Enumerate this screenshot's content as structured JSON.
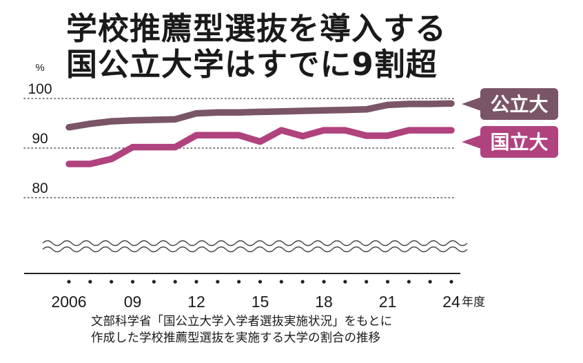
{
  "title_lines": [
    "学校推薦型選抜を導入する",
    "国公立大学はすでに9割超"
  ],
  "source_lines": [
    "文部科学省「国公立大学入学者選抜実施状況」をもとに",
    "作成した学校推薦型選抜を実施する大学の割合の推移"
  ],
  "colors": {
    "public": "#7a5467",
    "national": "#b0427e",
    "axis": "#222222",
    "grid": "#555555"
  },
  "chart_data": {
    "type": "line",
    "title": "学校推薦型選抜を導入する国公立大学はすでに9割超",
    "unit_label": "%",
    "xlabel": "年度",
    "ylim": [
      80,
      100
    ],
    "y_ticks": [
      80,
      90,
      100
    ],
    "x": [
      2006,
      2007,
      2008,
      2009,
      2010,
      2011,
      2012,
      2013,
      2014,
      2015,
      2016,
      2017,
      2018,
      2019,
      2020,
      2021,
      2022,
      2023,
      2024
    ],
    "x_tick_labels": [
      {
        "year": 2006,
        "label": "2006"
      },
      {
        "year": 2009,
        "label": "09"
      },
      {
        "year": 2012,
        "label": "12"
      },
      {
        "year": 2015,
        "label": "15"
      },
      {
        "year": 2018,
        "label": "18"
      },
      {
        "year": 2021,
        "label": "21"
      },
      {
        "year": 2024,
        "label": "24"
      }
    ],
    "axis_break": true,
    "grid": true,
    "series": [
      {
        "name": "公立大",
        "key": "public",
        "values": [
          94.2,
          94.9,
          95.4,
          95.6,
          95.7,
          95.8,
          97.0,
          97.2,
          97.2,
          97.3,
          97.4,
          97.5,
          97.6,
          97.7,
          97.8,
          98.7,
          98.9,
          98.9,
          99.0
        ]
      },
      {
        "name": "国立大",
        "key": "national",
        "values": [
          86.8,
          86.8,
          87.8,
          90.2,
          90.2,
          90.2,
          92.6,
          92.6,
          92.6,
          91.3,
          93.6,
          92.4,
          93.6,
          93.6,
          92.5,
          92.5,
          93.6,
          93.6,
          93.6
        ]
      }
    ]
  }
}
